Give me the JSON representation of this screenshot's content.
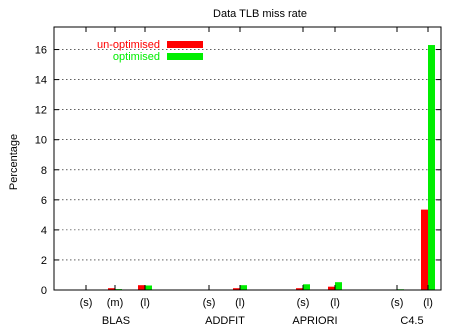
{
  "chart_data": {
    "type": "bar",
    "title": "Data TLB miss rate",
    "xlabel": "",
    "ylabel": "Percentage",
    "ylim": [
      0,
      17.5
    ],
    "yticks": [
      0,
      2,
      4,
      6,
      8,
      10,
      12,
      14,
      16
    ],
    "grid": true,
    "legend_position": "top-left",
    "categories": [
      {
        "label": "(s)",
        "group": "BLAS"
      },
      {
        "label": "(m)",
        "group": "BLAS"
      },
      {
        "label": "(l)",
        "group": "BLAS"
      },
      {
        "label": "(s)",
        "group": "ADDFIT"
      },
      {
        "label": "(l)",
        "group": "ADDFIT"
      },
      {
        "label": "(s)",
        "group": "APRIORI"
      },
      {
        "label": "(l)",
        "group": "APRIORI"
      },
      {
        "label": "(s)",
        "group": "C4.5"
      },
      {
        "label": "(l)",
        "group": "C4.5"
      }
    ],
    "groups": [
      "BLAS",
      "ADDFIT",
      "APRIORI",
      "C4.5"
    ],
    "series": [
      {
        "name": "un-optimised",
        "color": "#ff0000",
        "values": [
          0.02,
          0.12,
          0.32,
          0.03,
          0.12,
          0.12,
          0.22,
          0.03,
          5.35
        ]
      },
      {
        "name": "optimised",
        "color": "#00ee00",
        "values": [
          0.02,
          0.06,
          0.3,
          0.03,
          0.32,
          0.38,
          0.52,
          0.05,
          16.3
        ]
      }
    ]
  }
}
